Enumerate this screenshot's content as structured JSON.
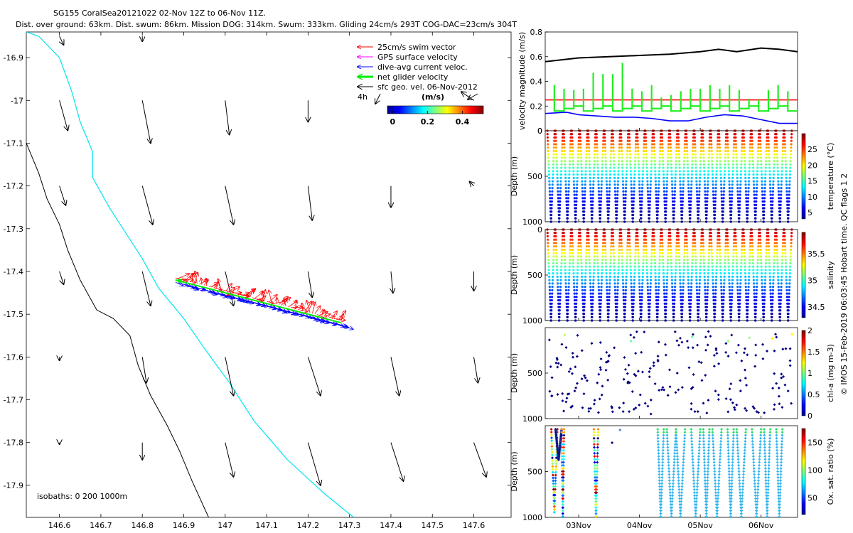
{
  "header": {
    "line1": "SG155 CoralSea20121022 02-Nov 12Z to 06-Nov 11Z.",
    "line2": "Dist. over ground: 63km. Dist. swum: 86km. Mission DOG: 314km. Swum: 333km. Gliding 24cm/s 293T COG-DAC=23cm/s 304T"
  },
  "side_note": "© IMOS 15-Feb-2019 06:03:45 Hobart time. QC flags 1  2",
  "colors": {
    "swim": "#ff0000",
    "gps": "#ff00ff",
    "dac": "#0000ff",
    "net": "#00ee00",
    "geo": "#000000",
    "coast": "#00e5ee"
  },
  "chart_data": [
    {
      "type": "scatter",
      "name": "map",
      "xticks": [
        "146.6",
        "146.7",
        "146.8",
        "146.9",
        "147",
        "147.1",
        "147.2",
        "147.3",
        "147.4",
        "147.5",
        "147.6"
      ],
      "yticks": [
        "-16.9",
        "-17",
        "-17.1",
        "-17.2",
        "-17.3",
        "-17.4",
        "-17.5",
        "-17.6",
        "-17.7",
        "-17.8",
        "-17.9"
      ],
      "xlim": [
        146.52,
        147.69
      ],
      "ylim": [
        -17.975,
        -16.84
      ],
      "legend": {
        "entries": [
          "25cm/s swim vector",
          "GPS surface velocity",
          "dive-avg current veloc.",
          "net glider velocity",
          "sfc geo. vel. 06-Nov-2012"
        ],
        "duration": "4h"
      },
      "colorbar": {
        "label": "(m/s)",
        "ticks": [
          "0",
          "0.2",
          "0.4"
        ],
        "range": [
          -0.03,
          0.52
        ]
      },
      "isobaths_text": "isobaths: 0   200   1000m",
      "track": {
        "start": [
          146.88,
          -17.42
        ],
        "end": [
          147.28,
          -17.52
        ]
      },
      "isobath_200": [
        [
          146.52,
          -16.84
        ],
        [
          146.55,
          -16.85
        ],
        [
          146.6,
          -16.9
        ],
        [
          146.63,
          -16.98
        ],
        [
          146.65,
          -17.05
        ],
        [
          146.68,
          -17.12
        ],
        [
          146.68,
          -17.18
        ],
        [
          146.72,
          -17.25
        ],
        [
          146.76,
          -17.31
        ],
        [
          146.8,
          -17.37
        ],
        [
          146.84,
          -17.44
        ],
        [
          146.9,
          -17.51
        ],
        [
          146.95,
          -17.58
        ],
        [
          147.01,
          -17.66
        ],
        [
          147.07,
          -17.75
        ],
        [
          147.15,
          -17.84
        ],
        [
          147.24,
          -17.92
        ],
        [
          147.31,
          -17.975
        ]
      ],
      "isobath_1000": [
        [
          146.52,
          -17.1
        ],
        [
          146.55,
          -17.17
        ],
        [
          146.57,
          -17.23
        ],
        [
          146.6,
          -17.29
        ],
        [
          146.62,
          -17.35
        ],
        [
          146.65,
          -17.42
        ],
        [
          146.69,
          -17.49
        ],
        [
          146.73,
          -17.51
        ],
        [
          146.77,
          -17.55
        ],
        [
          146.79,
          -17.62
        ],
        [
          146.82,
          -17.69
        ],
        [
          146.86,
          -17.76
        ],
        [
          146.89,
          -17.82
        ],
        [
          146.92,
          -17.89
        ],
        [
          146.96,
          -17.975
        ]
      ],
      "geo_vectors": [
        [
          146.6,
          -16.85,
          0.01,
          -0.02
        ],
        [
          146.8,
          -16.85,
          0.0,
          -0.012
        ],
        [
          146.6,
          -17.0,
          0.02,
          -0.07
        ],
        [
          146.8,
          -17.0,
          0.02,
          -0.1
        ],
        [
          147.0,
          -17.0,
          0.01,
          -0.08
        ],
        [
          147.2,
          -17.0,
          0.0,
          -0.05
        ],
        [
          147.6,
          -17.0,
          -0.03,
          0.02
        ],
        [
          146.6,
          -17.2,
          0.015,
          -0.045
        ],
        [
          146.8,
          -17.2,
          0.025,
          -0.09
        ],
        [
          147.0,
          -17.2,
          0.02,
          -0.09
        ],
        [
          147.2,
          -17.2,
          0.01,
          -0.08
        ],
        [
          147.4,
          -17.2,
          0.0,
          -0.05
        ],
        [
          147.6,
          -17.2,
          -0.01,
          0.01
        ],
        [
          146.6,
          -17.4,
          0.01,
          -0.03
        ],
        [
          146.8,
          -17.4,
          0.02,
          -0.08
        ],
        [
          147.0,
          -17.4,
          0.02,
          -0.08
        ],
        [
          147.2,
          -17.4,
          0.01,
          -0.06
        ],
        [
          147.4,
          -17.4,
          0.005,
          -0.05
        ],
        [
          147.6,
          -17.4,
          0.0,
          -0.045
        ],
        [
          146.6,
          -17.6,
          0.0,
          -0.008
        ],
        [
          146.8,
          -17.6,
          0.01,
          -0.06
        ],
        [
          147.0,
          -17.6,
          0.02,
          -0.09
        ],
        [
          147.2,
          -17.6,
          0.03,
          -0.09
        ],
        [
          147.4,
          -17.6,
          0.02,
          -0.09
        ],
        [
          147.6,
          -17.6,
          0.01,
          -0.06
        ],
        [
          146.6,
          -17.8,
          0.0,
          -0.004
        ],
        [
          146.8,
          -17.8,
          0.0,
          -0.04
        ],
        [
          147.0,
          -17.8,
          0.02,
          -0.08
        ],
        [
          147.2,
          -17.8,
          0.03,
          -0.1
        ],
        [
          147.4,
          -17.8,
          0.03,
          -0.09
        ],
        [
          147.6,
          -17.8,
          0.03,
          -0.08
        ]
      ]
    },
    {
      "type": "line",
      "name": "velocity",
      "ylabel": "velocity magnitude (m/s)",
      "ylim": [
        0,
        0.8
      ],
      "yticks": [
        "0",
        "0.2",
        "0.4",
        "0.6",
        "0.8"
      ],
      "xlim": [
        2.45,
        6.6
      ],
      "series": [
        {
          "color": "#000000",
          "x": [
            2.45,
            3.0,
            3.5,
            4.0,
            4.5,
            5.0,
            5.3,
            5.6,
            6.0,
            6.3,
            6.6
          ],
          "values": [
            0.56,
            0.59,
            0.6,
            0.61,
            0.62,
            0.64,
            0.66,
            0.64,
            0.67,
            0.66,
            0.64
          ]
        },
        {
          "color": "#ff0000",
          "x": [
            2.45,
            6.6
          ],
          "values": [
            0.25,
            0.25
          ]
        },
        {
          "color": "#0000ff",
          "x": [
            2.45,
            2.8,
            3.0,
            3.3,
            3.6,
            3.9,
            4.2,
            4.5,
            4.8,
            5.1,
            5.4,
            5.7,
            6.0,
            6.3,
            6.6
          ],
          "values": [
            0.14,
            0.15,
            0.13,
            0.12,
            0.11,
            0.11,
            0.1,
            0.08,
            0.08,
            0.11,
            0.13,
            0.12,
            0.09,
            0.06,
            0.06
          ]
        }
      ],
      "net_sawtooth": {
        "color": "#22ee22",
        "base": 0.16,
        "peaks": [
          0.37,
          0.34,
          0.33,
          0.34,
          0.47,
          0.46,
          0.46,
          0.55,
          0.34,
          0.32,
          0.37,
          0.27,
          0.29,
          0.32,
          0.34,
          0.34,
          0.37,
          0.34,
          0.37,
          0.33,
          0.26,
          0.25,
          0.33,
          0.37,
          0.32
        ]
      }
    },
    {
      "type": "scatter",
      "name": "temperature",
      "ylabel": "Depth (m)",
      "colorbar": {
        "label": "temperature (°C)",
        "ticks": [
          "5",
          "10",
          "15",
          "20",
          "25"
        ],
        "range": [
          3,
          30
        ]
      },
      "ylim": [
        1000,
        0
      ],
      "yticks": [
        "0",
        "500",
        "1000"
      ],
      "dives": 30,
      "surface_value": 28,
      "bottom_value": 4
    },
    {
      "type": "scatter",
      "name": "salinity",
      "ylabel": "Depth (m)",
      "colorbar": {
        "label": "salinity",
        "ticks": [
          "34.5",
          "35",
          "35.5"
        ],
        "range": [
          34.3,
          35.9
        ]
      },
      "ylim": [
        1000,
        0
      ],
      "yticks": [
        "0",
        "500",
        "1000"
      ],
      "dives": 30
    },
    {
      "type": "scatter",
      "name": "chl",
      "ylabel": "Depth (m)",
      "colorbar": {
        "label": "chl-a (mg m-3)",
        "ticks": [
          "0",
          "0.5",
          "1",
          "1.5",
          "2"
        ],
        "range": [
          0,
          2
        ]
      },
      "ylim": [
        1000,
        0
      ],
      "yticks": [
        "500",
        "1000"
      ]
    },
    {
      "type": "scatter",
      "name": "oxygen",
      "ylabel": "Depth (m)",
      "colorbar": {
        "label": "Ox. sat. ratio (%)",
        "ticks": [
          "50",
          "100",
          "150"
        ],
        "range": [
          20,
          175
        ]
      },
      "ylim": [
        1000,
        0
      ],
      "yticks": [
        "500",
        "1000"
      ],
      "xticks": [
        "03Nov",
        "04Nov",
        "05Nov",
        "06Nov"
      ],
      "xtick_days": [
        3,
        4,
        5,
        6
      ]
    }
  ]
}
